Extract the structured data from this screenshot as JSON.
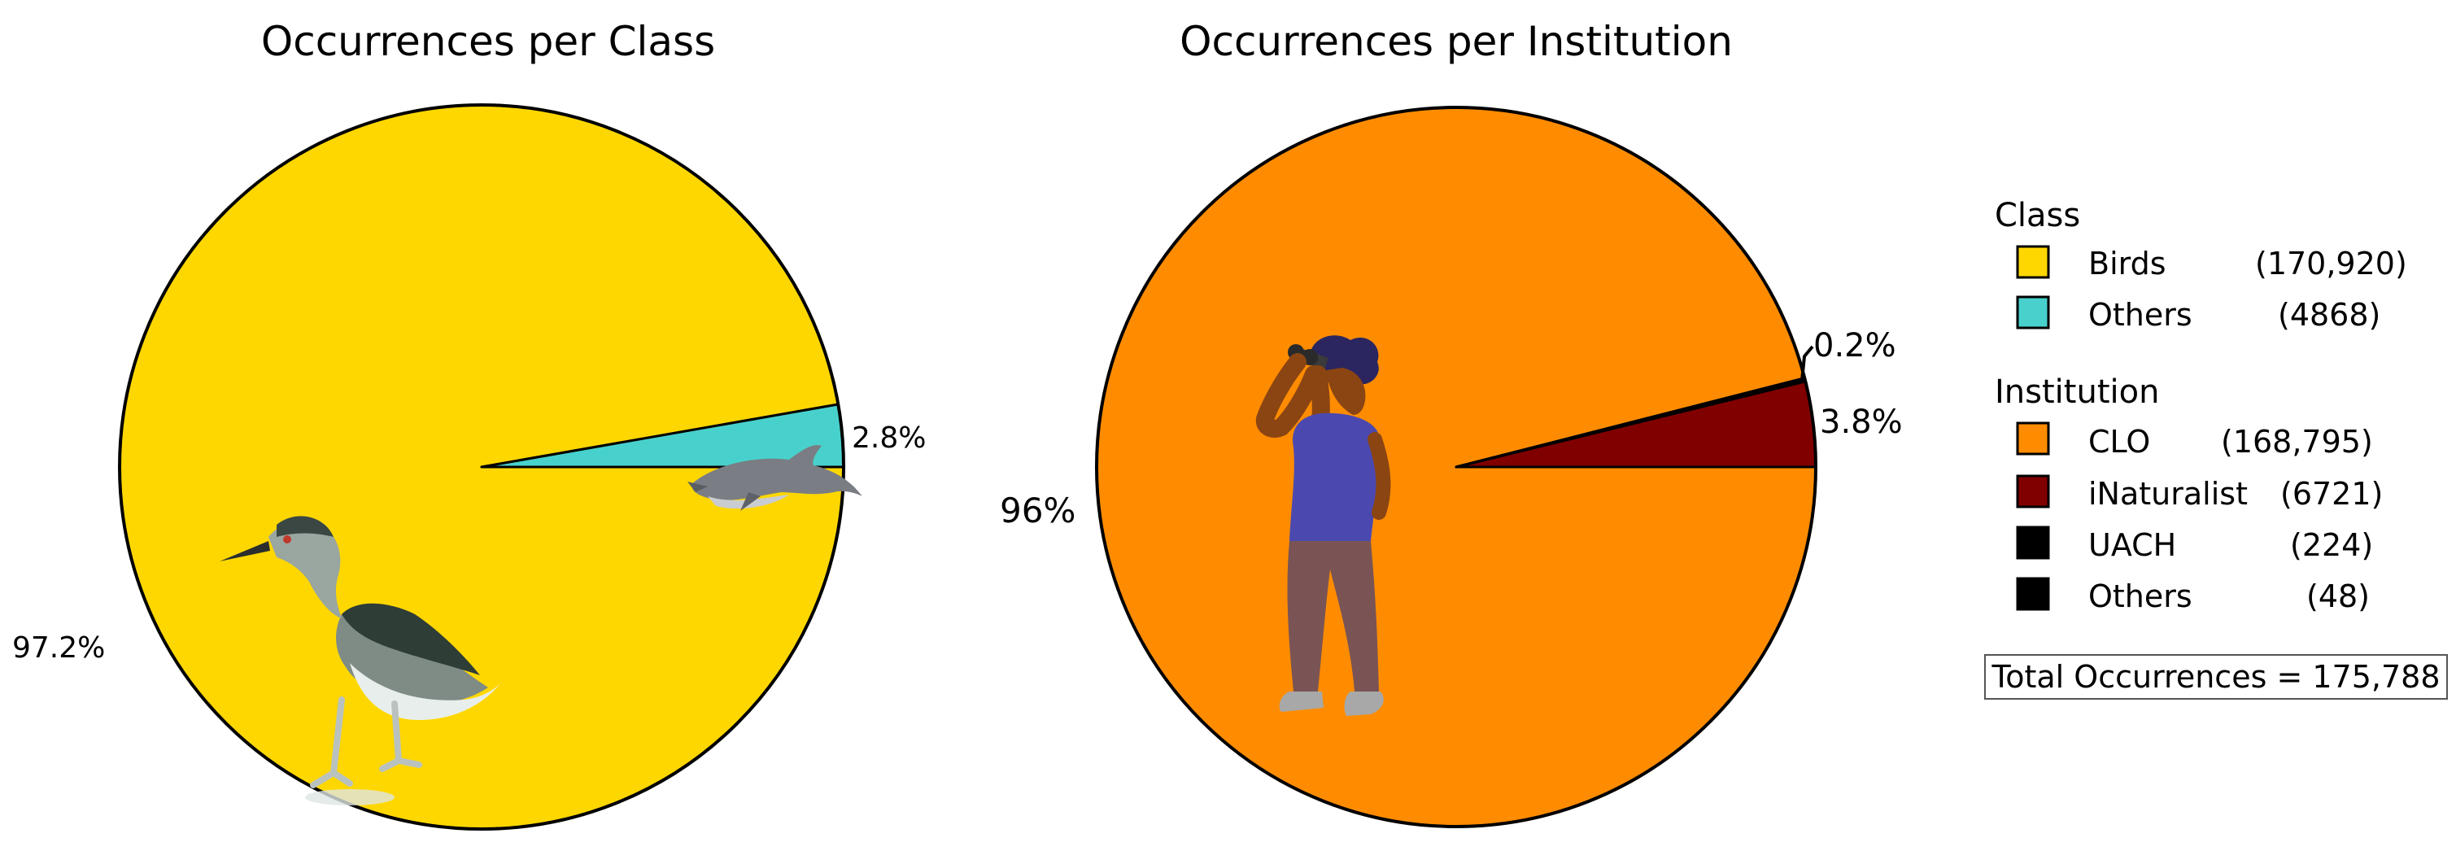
{
  "chart_data": [
    {
      "type": "pie",
      "title": "Occurrences per Class",
      "slices": [
        {
          "label": "Birds",
          "value": 170920,
          "percent_label": "97.2%",
          "color": "#FFD700"
        },
        {
          "label": "Others",
          "value": 4868,
          "percent_label": "2.8%",
          "color": "#48D1CC"
        }
      ],
      "illustrations": [
        "bird-icon",
        "dolphin-icon"
      ]
    },
    {
      "type": "pie",
      "title": "Occurrences per Institution",
      "slices": [
        {
          "label": "CLO",
          "value": 168795,
          "percent_label": "96%",
          "color": "#FF8C00"
        },
        {
          "label": "iNaturalist",
          "value": 6721,
          "percent_label": "3.8%",
          "color": "#800000"
        },
        {
          "label": "UACH",
          "value": 224,
          "percent_label": "0.2%",
          "color": "#000000"
        },
        {
          "label": "Others",
          "value": 48,
          "percent_label": "",
          "color": "#000000"
        }
      ],
      "illustrations": [
        "birdwatcher-icon"
      ]
    }
  ],
  "legend": {
    "groups": [
      {
        "heading": "Class",
        "items": [
          {
            "name": "Birds",
            "count": "(170,920)",
            "color": "#FFD700"
          },
          {
            "name": "Others",
            "count": "(4868)",
            "color": "#48D1CC"
          }
        ]
      },
      {
        "heading": "Institution",
        "items": [
          {
            "name": "CLO",
            "count": "(168,795)",
            "color": "#FF8C00"
          },
          {
            "name": "iNaturalist",
            "count": "(6721)",
            "color": "#800000"
          },
          {
            "name": "UACH",
            "count": "(224)",
            "color": "#000000"
          },
          {
            "name": "Others",
            "count": "(48)",
            "color": "#000000"
          }
        ]
      }
    ],
    "total": "Total Occurrences = 175,788"
  }
}
